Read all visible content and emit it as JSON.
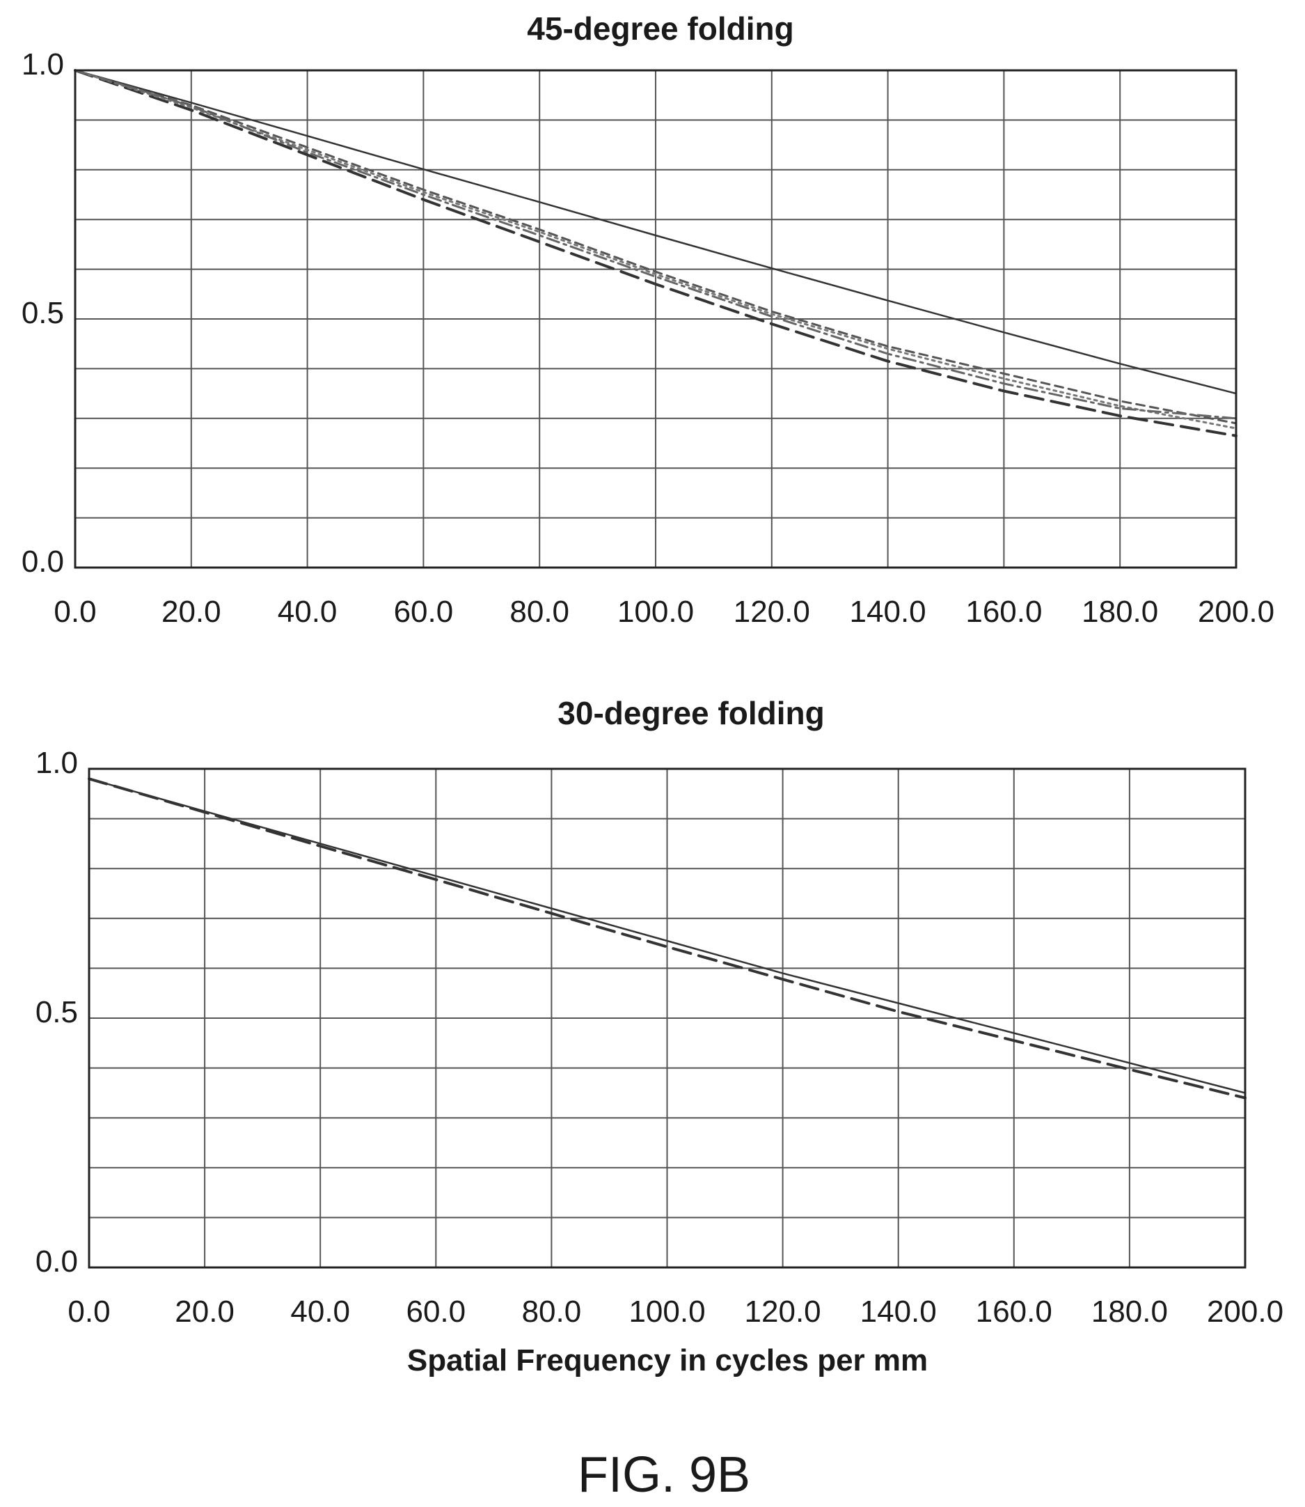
{
  "figure_label": "FIG. 9B",
  "chart_data": [
    {
      "type": "line",
      "title": "45-degree folding",
      "xlabel": "",
      "ylabel": "",
      "xlim": [
        0,
        200
      ],
      "ylim": [
        0,
        1
      ],
      "x_ticks": [
        "0.0",
        "20.0",
        "40.0",
        "60.0",
        "80.0",
        "100.0",
        "120.0",
        "140.0",
        "160.0",
        "180.0",
        "200.0"
      ],
      "y_ticks": [
        "0.0",
        "0.5",
        "1.0"
      ],
      "grid": true,
      "series": [
        {
          "style": "solid",
          "color": "#333333",
          "x": [
            0,
            20,
            40,
            60,
            80,
            100,
            120,
            140,
            160,
            180,
            200
          ],
          "y": [
            1.0,
            0.935,
            0.868,
            0.801,
            0.735,
            0.668,
            0.602,
            0.537,
            0.473,
            0.41,
            0.35
          ]
        },
        {
          "style": "dashed-long",
          "color": "#333333",
          "x": [
            0,
            20,
            40,
            60,
            80,
            100,
            120,
            140,
            160,
            180,
            200
          ],
          "y": [
            1.0,
            0.92,
            0.83,
            0.74,
            0.655,
            0.57,
            0.49,
            0.415,
            0.355,
            0.305,
            0.265
          ]
        },
        {
          "style": "dashed-short",
          "color": "#555555",
          "x": [
            0,
            20,
            40,
            60,
            80,
            100,
            120,
            140,
            160,
            180,
            200
          ],
          "y": [
            1.0,
            0.93,
            0.845,
            0.76,
            0.68,
            0.595,
            0.515,
            0.445,
            0.39,
            0.335,
            0.29
          ]
        },
        {
          "style": "dotted",
          "color": "#777777",
          "x": [
            0,
            20,
            40,
            60,
            80,
            100,
            120,
            140,
            160,
            180,
            200
          ],
          "y": [
            1.0,
            0.925,
            0.84,
            0.755,
            0.675,
            0.59,
            0.51,
            0.44,
            0.38,
            0.325,
            0.28
          ]
        },
        {
          "style": "dash-dot",
          "color": "#666666",
          "x": [
            0,
            20,
            40,
            60,
            80,
            100,
            120,
            140,
            160,
            180,
            200
          ],
          "y": [
            1.0,
            0.928,
            0.835,
            0.75,
            0.668,
            0.585,
            0.505,
            0.43,
            0.37,
            0.32,
            0.3
          ]
        }
      ]
    },
    {
      "type": "line",
      "title": "30-degree folding",
      "xlabel": "Spatial Frequency in cycles per mm",
      "ylabel": "",
      "xlim": [
        0,
        200
      ],
      "ylim": [
        0,
        1
      ],
      "x_ticks": [
        "0.0",
        "20.0",
        "40.0",
        "60.0",
        "80.0",
        "100.0",
        "120.0",
        "140.0",
        "160.0",
        "180.0",
        "200.0"
      ],
      "y_ticks": [
        "0.0",
        "0.5",
        "1.0"
      ],
      "grid": true,
      "series": [
        {
          "style": "solid",
          "color": "#333333",
          "x": [
            0,
            20,
            40,
            60,
            80,
            100,
            120,
            140,
            160,
            180,
            200
          ],
          "y": [
            0.98,
            0.915,
            0.85,
            0.785,
            0.72,
            0.655,
            0.59,
            0.53,
            0.47,
            0.41,
            0.35
          ]
        },
        {
          "style": "dashed-long",
          "color": "#333333",
          "x": [
            0,
            20,
            40,
            60,
            80,
            100,
            120,
            140,
            160,
            180,
            200
          ],
          "y": [
            0.98,
            0.913,
            0.845,
            0.778,
            0.71,
            0.643,
            0.578,
            0.513,
            0.455,
            0.397,
            0.34
          ]
        }
      ]
    }
  ]
}
